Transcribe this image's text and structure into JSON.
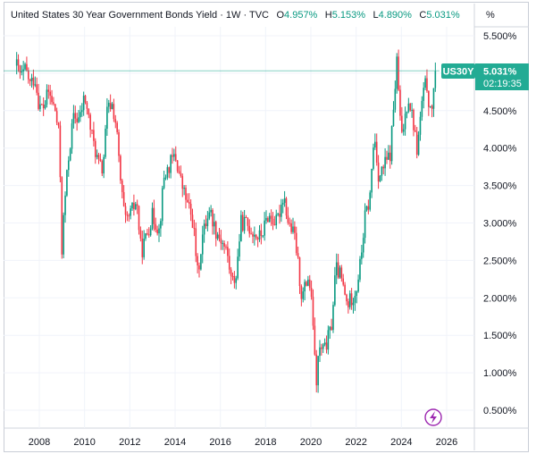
{
  "header": {
    "title": "United States 30 Year Government Bonds Yield · 1W · TVC",
    "o_label": "O",
    "o_value": "4.957%",
    "h_label": "H",
    "h_value": "5.153%",
    "l_label": "L",
    "l_value": "4.890%",
    "c_label": "C",
    "c_value": "5.031%"
  },
  "scale_button": "%",
  "price_tag": {
    "symbol": "US30Y",
    "value": "5.031%",
    "countdown": "02:19:35"
  },
  "colors": {
    "up": "#089981",
    "down": "#f23645",
    "tag": "#22ab94",
    "grid": "#f0f3fa",
    "last_line": "#22ab94",
    "lightning": "#9c27b0"
  },
  "icons": {
    "replay": "lightning-icon"
  },
  "chart_data": {
    "type": "candlestick",
    "title": "United States 30 Year Government Bonds Yield",
    "interval": "1W",
    "source": "TVC",
    "last_close": 5.031,
    "y_axis": {
      "unit": "%",
      "ylim": [
        0.25,
        5.75
      ],
      "ticks": [
        "5.500%",
        "5.000%",
        "4.500%",
        "4.000%",
        "3.500%",
        "3.000%",
        "2.500%",
        "2.000%",
        "1.500%",
        "1.000%",
        "0.500%"
      ],
      "tick_values": [
        5.5,
        5.0,
        4.5,
        4.0,
        3.5,
        3.0,
        2.5,
        2.0,
        1.5,
        1.0,
        0.5
      ]
    },
    "x_axis": {
      "xlim": [
        2007.0,
        2027.0
      ],
      "ticks": [
        "2008",
        "2010",
        "2012",
        "2014",
        "2016",
        "2018",
        "2020",
        "2022",
        "2024",
        "2026"
      ],
      "tick_values": [
        2008,
        2010,
        2012,
        2014,
        2016,
        2018,
        2020,
        2022,
        2024,
        2026
      ]
    },
    "grid": true,
    "path": [
      [
        2007.0,
        5.1
      ],
      [
        2007.2,
        4.95
      ],
      [
        2007.4,
        5.05
      ],
      [
        2007.6,
        4.85
      ],
      [
        2007.8,
        4.95
      ],
      [
        2008.0,
        4.55
      ],
      [
        2008.2,
        4.55
      ],
      [
        2008.4,
        4.75
      ],
      [
        2008.7,
        4.5
      ],
      [
        2008.9,
        4.1
      ],
      [
        2008.98,
        2.55
      ],
      [
        2009.1,
        3.2
      ],
      [
        2009.3,
        3.9
      ],
      [
        2009.5,
        4.4
      ],
      [
        2009.8,
        4.4
      ],
      [
        2010.0,
        4.7
      ],
      [
        2010.3,
        4.2
      ],
      [
        2010.6,
        3.8
      ],
      [
        2010.8,
        3.7
      ],
      [
        2011.0,
        4.5
      ],
      [
        2011.2,
        4.6
      ],
      [
        2011.4,
        4.3
      ],
      [
        2011.6,
        3.5
      ],
      [
        2011.8,
        3.0
      ],
      [
        2012.0,
        3.1
      ],
      [
        2012.3,
        3.3
      ],
      [
        2012.5,
        2.6
      ],
      [
        2012.8,
        2.9
      ],
      [
        2013.0,
        3.1
      ],
      [
        2013.3,
        2.9
      ],
      [
        2013.5,
        3.6
      ],
      [
        2013.8,
        3.8
      ],
      [
        2014.0,
        3.9
      ],
      [
        2014.3,
        3.5
      ],
      [
        2014.6,
        3.2
      ],
      [
        2014.8,
        3.0
      ],
      [
        2015.0,
        2.3
      ],
      [
        2015.2,
        2.8
      ],
      [
        2015.5,
        3.2
      ],
      [
        2015.8,
        2.9
      ],
      [
        2016.0,
        2.8
      ],
      [
        2016.3,
        2.6
      ],
      [
        2016.5,
        2.2
      ],
      [
        2016.7,
        2.3
      ],
      [
        2016.9,
        3.0
      ],
      [
        2017.1,
        3.0
      ],
      [
        2017.4,
        2.9
      ],
      [
        2017.7,
        2.8
      ],
      [
        2017.9,
        2.9
      ],
      [
        2018.1,
        3.1
      ],
      [
        2018.5,
        3.0
      ],
      [
        2018.8,
        3.4
      ],
      [
        2019.0,
        3.0
      ],
      [
        2019.3,
        2.8
      ],
      [
        2019.6,
        2.0
      ],
      [
        2019.9,
        2.3
      ],
      [
        2020.0,
        2.0
      ],
      [
        2020.15,
        1.5
      ],
      [
        2020.2,
        0.7
      ],
      [
        2020.35,
        1.3
      ],
      [
        2020.6,
        1.3
      ],
      [
        2020.9,
        1.6
      ],
      [
        2021.1,
        2.4
      ],
      [
        2021.3,
        2.3
      ],
      [
        2021.6,
        1.9
      ],
      [
        2021.8,
        2.0
      ],
      [
        2022.0,
        2.1
      ],
      [
        2022.2,
        2.5
      ],
      [
        2022.4,
        3.1
      ],
      [
        2022.6,
        3.3
      ],
      [
        2022.8,
        4.2
      ],
      [
        2023.0,
        3.6
      ],
      [
        2023.3,
        3.8
      ],
      [
        2023.5,
        3.9
      ],
      [
        2023.8,
        5.15
      ],
      [
        2024.0,
        4.1
      ],
      [
        2024.3,
        4.7
      ],
      [
        2024.5,
        4.4
      ],
      [
        2024.7,
        3.95
      ],
      [
        2024.9,
        4.6
      ],
      [
        2025.1,
        4.9
      ],
      [
        2025.3,
        4.4
      ],
      [
        2025.5,
        5.03
      ]
    ]
  }
}
